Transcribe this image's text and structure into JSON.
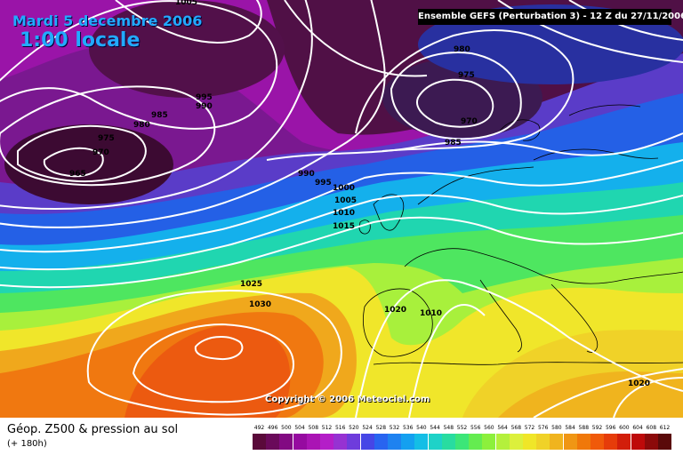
{
  "header": {
    "date_line": "Mardi 5 decembre 2006",
    "time_line": "1:00 locale",
    "run_info": "Ensemble GEFS (Perturbation 3) - 12 Z du 27/11/2006"
  },
  "map": {
    "copyright": "Copyright © 2006 Meteociel.com",
    "isobar_labels": [
      "1000",
      "1005",
      "995",
      "990",
      "985",
      "980",
      "975",
      "970",
      "965",
      "980",
      "975",
      "970",
      "985",
      "990",
      "995",
      "1000",
      "1005",
      "1010",
      "1015",
      "1025",
      "1030",
      "1020",
      "1010",
      "1020"
    ]
  },
  "footer": {
    "parameter_title": "Géop. Z500 & pression au sol",
    "lead_time": "(+ 180h)"
  },
  "legend": {
    "ticks": [
      "492",
      "496",
      "500",
      "504",
      "508",
      "512",
      "516",
      "520",
      "524",
      "528",
      "532",
      "536",
      "540",
      "544",
      "548",
      "552",
      "556",
      "560",
      "564",
      "568",
      "572",
      "576",
      "580",
      "584",
      "588",
      "592",
      "596",
      "600",
      "604",
      "608",
      "612"
    ],
    "colors": [
      "#5a0a3a",
      "#6a0a5a",
      "#820a82",
      "#960aa0",
      "#aa14b4",
      "#b41ec8",
      "#9632d2",
      "#6e3cdc",
      "#4646e6",
      "#2864f0",
      "#1e82f0",
      "#14a0f0",
      "#14bee6",
      "#1ed2c8",
      "#28dca0",
      "#3ce678",
      "#64ec50",
      "#8cf03c",
      "#b4f03c",
      "#dcf03c",
      "#f0e628",
      "#f0d228",
      "#f0b41e",
      "#f09614",
      "#f0780a",
      "#f05a0a",
      "#e63c0a",
      "#d21e0a",
      "#be0a0a",
      "#8c0a0a",
      "#5a0a0a"
    ]
  }
}
